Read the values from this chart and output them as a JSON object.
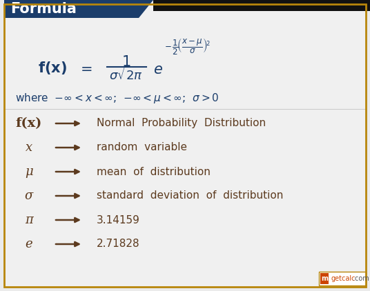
{
  "title": "Formula",
  "title_bg": "#1b3d6b",
  "title_text_color": "#ffffff",
  "bg_color": "#ebebeb",
  "main_bg": "#f0f0f0",
  "formula_color": "#1b3d6b",
  "symbol_color": "#5c3a1e",
  "arrow_color": "#5c3a1e",
  "desc_color": "#5c3a1e",
  "border_color": "#b8860b",
  "rows": [
    {
      "symbol": "f(x)",
      "is_math": true,
      "bold": true,
      "desc": "Normal  Probability  Distribution"
    },
    {
      "symbol": "x",
      "is_math": false,
      "bold": false,
      "desc": "random  variable"
    },
    {
      "symbol": "μ",
      "is_math": false,
      "bold": false,
      "desc": "mean  of  distribution"
    },
    {
      "symbol": "σ",
      "is_math": false,
      "bold": false,
      "desc": "standard  deviation  of  distribution"
    },
    {
      "symbol": "π",
      "is_math": false,
      "bold": false,
      "desc": "3.14159"
    },
    {
      "symbol": "e",
      "is_math": false,
      "bold": false,
      "desc": "2.71828"
    }
  ]
}
